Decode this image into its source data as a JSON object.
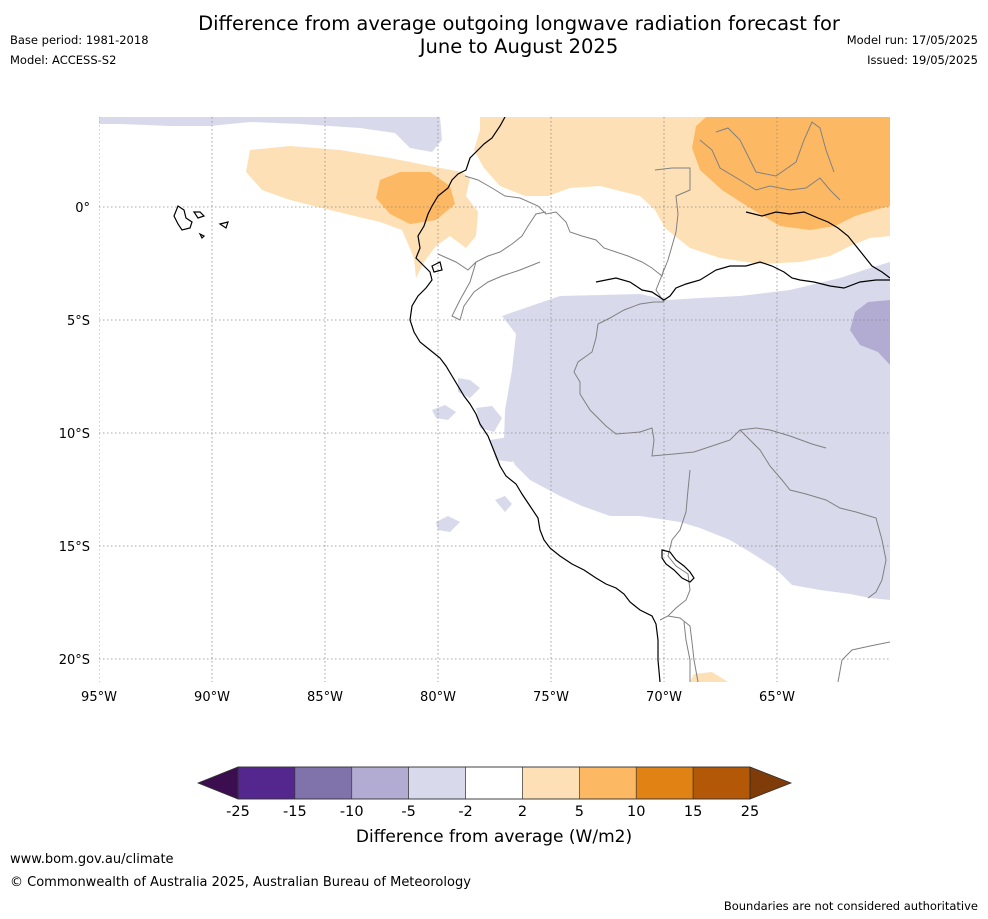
{
  "title": "Difference from average outgoing longwave radiation forecast for June to August 2025",
  "title_line1": "Difference from average outgoing longwave radiation forecast for",
  "title_line2": "June to August 2025",
  "base_period": "Base period: 1981-2018",
  "model": "Model: ACCESS-S2",
  "model_run": "Model run: 17/05/2025",
  "issued": "Issued: 19/05/2025",
  "map": {
    "lon_range": [
      -95,
      -60
    ],
    "lat_range": [
      -21,
      4
    ],
    "lat_labels": [
      "0°",
      "5°S",
      "10°S",
      "15°S",
      "20°S"
    ],
    "lon_labels": [
      "95°W",
      "90°W",
      "85°W",
      "80°W",
      "75°W",
      "70°W",
      "65°W"
    ],
    "regions": [
      {
        "name": "northern-andes-positive-anomaly",
        "category": "2 to 5"
      },
      {
        "name": "galapagos-ecuador-positive-anomaly",
        "category": "2 to 5"
      },
      {
        "name": "ecuador-coast-positive-core",
        "category": "5 to 10"
      },
      {
        "name": "amazon-north-positive-core",
        "category": "5 to 10"
      },
      {
        "name": "amazon-south-negative-anomaly",
        "category": "-5 to -2"
      },
      {
        "name": "eastern-amazon-negative-core",
        "category": "-10 to -5"
      },
      {
        "name": "northwest-pacific-negative-anomaly",
        "category": "-5 to -2"
      }
    ]
  },
  "colorbar": {
    "label": "Difference from average (W/m2)",
    "ticks": [
      "-25",
      "-15",
      "-10",
      "-5",
      "-2",
      "2",
      "5",
      "10",
      "15",
      "25"
    ],
    "colors": [
      "#3b0f4f",
      "#54278f",
      "#8073ac",
      "#b2abd2",
      "#d8daeb",
      "#ffffff",
      "#fee0b6",
      "#fdb863",
      "#e08214",
      "#b35806",
      "#7f3b08"
    ]
  },
  "footer": {
    "website": "www.bom.gov.au/climate",
    "copyright": "© Commonwealth of Australia 2025, Australian Bureau of Meteorology",
    "disclaimer": "Boundaries are not considered authoritative"
  }
}
